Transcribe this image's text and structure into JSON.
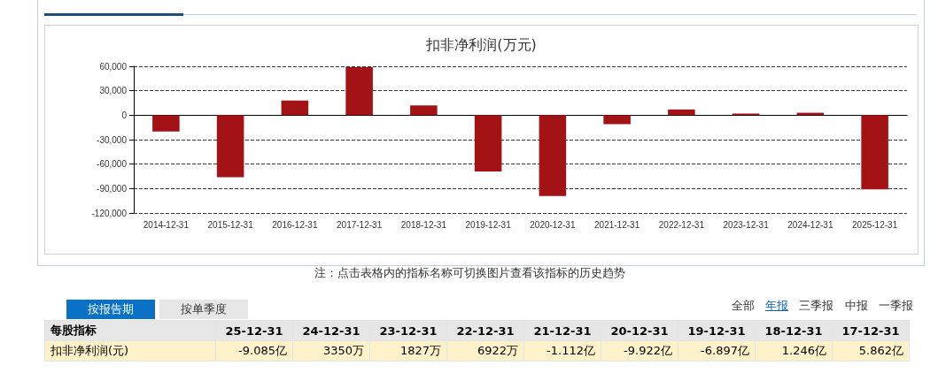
{
  "chart_data": {
    "type": "bar",
    "title": "扣非净利润(万元)",
    "categories": [
      "2014-12-31",
      "2015-12-31",
      "2016-12-31",
      "2017-12-31",
      "2018-12-31",
      "2019-12-31",
      "2020-12-31",
      "2021-12-31",
      "2022-12-31",
      "2023-12-31",
      "2024-12-31",
      "2025-12-31"
    ],
    "values": [
      -20000,
      -76000,
      18000,
      59000,
      12000,
      -69000,
      -99000,
      -11000,
      7000,
      2000,
      3000,
      -91000
    ],
    "color": "#a31316",
    "ylim": [
      -120000,
      60000
    ],
    "yticks": [
      {
        "value": -120000,
        "label": "-120,000"
      },
      {
        "value": -90000,
        "label": "-90,000"
      },
      {
        "value": -60000,
        "label": "-60,000"
      },
      {
        "value": -30000,
        "label": "-30,000"
      },
      0,
      {
        "value": 30000,
        "label": "30,000"
      },
      {
        "value": 60000,
        "label": "60,000"
      }
    ],
    "grid": "y",
    "annotations": [
      "注：点击表格内的指标名称可切换图片查看该指标的历史趋势",
      "按报告期",
      "按单季度",
      "全部",
      "年报",
      "三季报",
      "中报",
      "一季报",
      "每股指标",
      "25-12-31",
      "24-12-31",
      "23-12-31",
      "22-12-31",
      "21-12-31",
      "20-12-31",
      "19-12-31",
      "18-12-31",
      "17-12-31",
      "扣非净利润(元)",
      "-9.085亿",
      "3350万",
      "1827万",
      "6922万",
      "-1.112亿",
      "-9.922亿",
      "-6.897亿",
      "1.246亿",
      "5.862亿"
    ]
  }
}
